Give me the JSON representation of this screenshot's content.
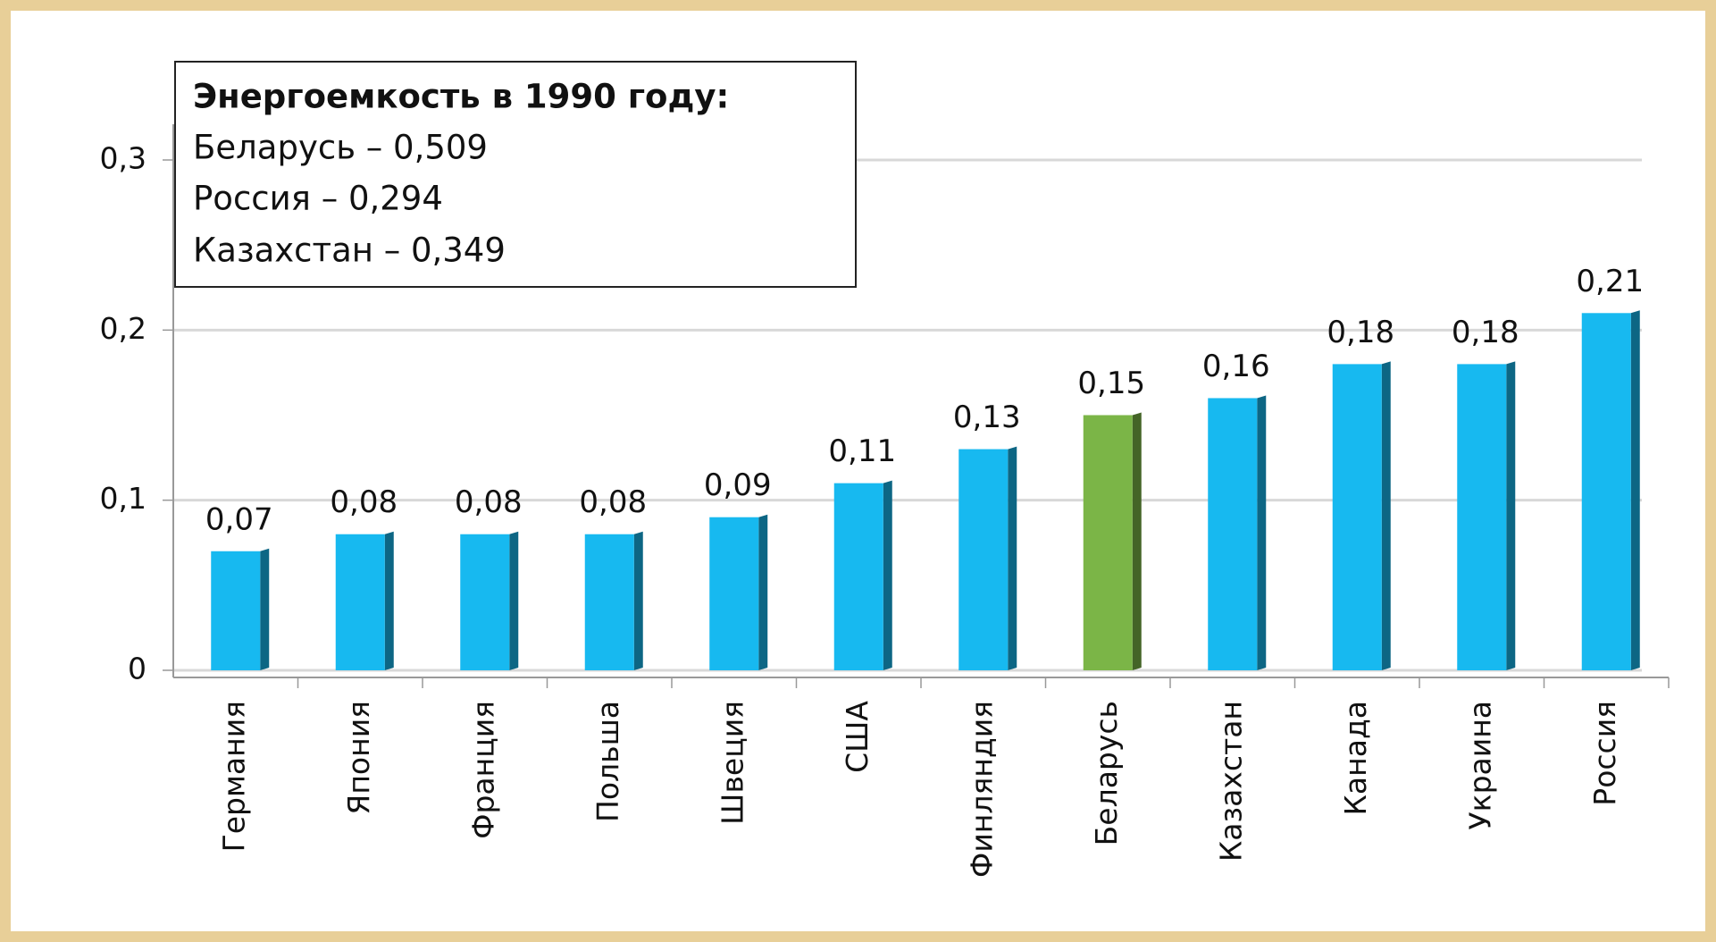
{
  "chart_data": {
    "type": "bar",
    "annotation": {
      "title": "Энергоемкость в 1990 году:",
      "lines": [
        "Беларусь – 0,509",
        "Россия – 0,294",
        "Казахстан – 0,349"
      ]
    },
    "categories": [
      "Германия",
      "Япония",
      "Франция",
      "Польша",
      "Швеция",
      "США",
      "Финляндия",
      "Беларусь",
      "Казахстан",
      "Канада",
      "Украина",
      "Россия"
    ],
    "values": [
      0.07,
      0.08,
      0.08,
      0.08,
      0.09,
      0.11,
      0.13,
      0.15,
      0.16,
      0.18,
      0.18,
      0.21
    ],
    "value_labels": [
      "0,07",
      "0,08",
      "0,08",
      "0,08",
      "0,09",
      "0,11",
      "0,13",
      "0,15",
      "0,16",
      "0,18",
      "0,18",
      "0,21"
    ],
    "colors": [
      "#17b9f0",
      "#17b9f0",
      "#17b9f0",
      "#17b9f0",
      "#17b9f0",
      "#17b9f0",
      "#17b9f0",
      "#7bb547",
      "#17b9f0",
      "#17b9f0",
      "#17b9f0",
      "#17b9f0"
    ],
    "ylim": [
      0,
      0.3
    ],
    "yticks": [
      0,
      {
        "value": 0.1,
        "label": "0,1"
      },
      {
        "value": 0.2,
        "label": "0,2"
      },
      {
        "value": 0.3,
        "label": "0,3"
      }
    ],
    "grid": true
  }
}
